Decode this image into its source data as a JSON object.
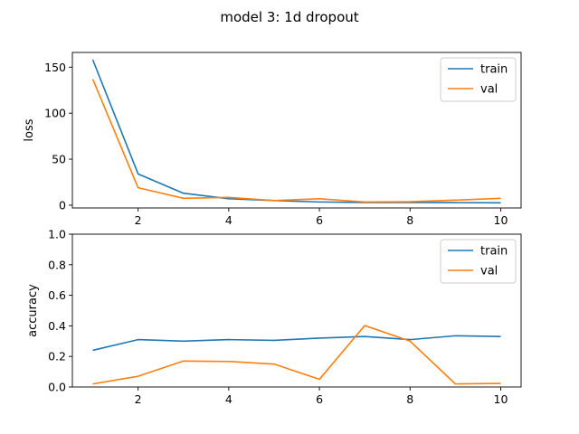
{
  "title": "model 3: 1d dropout",
  "colors": {
    "train": "#1f77b4",
    "val": "#ff7f0e"
  },
  "chart_data": [
    {
      "type": "line",
      "xlabel": "",
      "ylabel": "loss",
      "xlim": [
        0.55,
        10.45
      ],
      "ylim": [
        -3,
        166
      ],
      "xticks": [
        2,
        4,
        6,
        8,
        10
      ],
      "xtick_labels": [
        "2",
        "4",
        "6",
        "8",
        "10"
      ],
      "yticks": [
        0,
        50,
        100,
        150
      ],
      "ytick_labels": [
        "0",
        "50",
        "100",
        "150"
      ],
      "legend": {
        "position": "top-right",
        "entries": [
          "train",
          "val"
        ]
      },
      "grid": false,
      "x": [
        1,
        2,
        3,
        4,
        5,
        6,
        7,
        8,
        9,
        10
      ],
      "series": [
        {
          "name": "train",
          "color": "#1f77b4",
          "values": [
            158,
            34,
            13,
            7,
            5,
            3.5,
            3,
            3,
            2.8,
            2.6
          ]
        },
        {
          "name": "val",
          "color": "#ff7f0e",
          "values": [
            137,
            19,
            7.5,
            8.5,
            5,
            7,
            3.5,
            3.8,
            5.5,
            7.5
          ]
        }
      ]
    },
    {
      "type": "line",
      "xlabel": "",
      "ylabel": "accuracy",
      "xlim": [
        0.55,
        10.45
      ],
      "ylim": [
        0,
        1
      ],
      "xticks": [
        2,
        4,
        6,
        8,
        10
      ],
      "xtick_labels": [
        "2",
        "4",
        "6",
        "8",
        "10"
      ],
      "yticks": [
        0,
        0.2,
        0.4,
        0.6,
        0.8,
        1.0
      ],
      "ytick_labels": [
        "0.0",
        "0.2",
        "0.4",
        "0.6",
        "0.8",
        "1.0"
      ],
      "legend": {
        "position": "top-right",
        "entries": [
          "train",
          "val"
        ]
      },
      "grid": false,
      "x": [
        1,
        2,
        3,
        4,
        5,
        6,
        7,
        8,
        9,
        10
      ],
      "series": [
        {
          "name": "train",
          "color": "#1f77b4",
          "values": [
            0.24,
            0.31,
            0.3,
            0.31,
            0.305,
            0.32,
            0.33,
            0.31,
            0.335,
            0.33
          ]
        },
        {
          "name": "val",
          "color": "#ff7f0e",
          "values": [
            0.02,
            0.07,
            0.17,
            0.167,
            0.15,
            0.05,
            0.402,
            0.3,
            0.02,
            0.023
          ]
        }
      ]
    }
  ]
}
